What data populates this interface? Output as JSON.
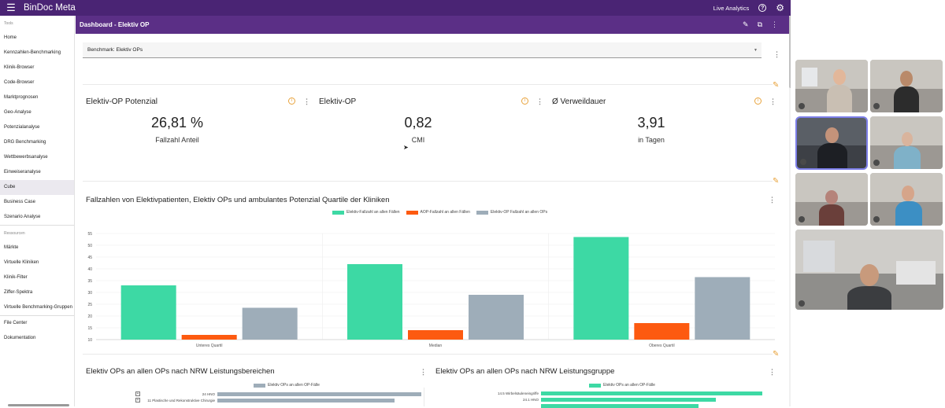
{
  "app": {
    "brand": "BinDoc Meta",
    "live_analytics": "Live Analytics",
    "help_icon": "?"
  },
  "sidebar": {
    "tools_header": "Tools",
    "tools": [
      "Home",
      "Kennzahlen-Benchmarking",
      "Klinik-Browser",
      "Code-Browser",
      "Marktprognosen",
      "Geo-Analyse",
      "Potenzialanalyse",
      "DRG Benchmarking",
      "Wettbewerbsanalyse",
      "Einweiseranalyse",
      "Cube",
      "Business Case",
      "Szenario Analyse"
    ],
    "active": "Cube",
    "resources_header": "Ressourcen",
    "resources": [
      "Märkte",
      "Virtuelle Kliniken",
      "Klinik-Filter",
      "Ziffer-Spektra",
      "Virtuelle Benchmarking-Gruppen",
      "File Center",
      "Dokumentation"
    ]
  },
  "dashboard": {
    "title": "Dashboard - Elektiv OP",
    "benchmark_select": "Benchmark: Elektiv OPs"
  },
  "kpis": [
    {
      "title": "Elektiv-OP Potenzial",
      "value": "26,81 %",
      "label": "Fallzahl Anteil"
    },
    {
      "title": "Elektiv-OP",
      "value": "0,82",
      "label": "CMI"
    },
    {
      "title": "Ø Verweildauer",
      "value": "3,91",
      "label": "in Tagen"
    }
  ],
  "colors": {
    "topbar": "#4a2474",
    "dashbar": "#5b2f86",
    "green": "#3dd9a4",
    "orange": "#fd5a10",
    "gray": "#9eadb9",
    "accent": "#e8a23a"
  },
  "chart_data": [
    {
      "type": "bar",
      "title": "Fallzahlen von Elektivpatienten, Elektiv OPs und ambulantes Potenzial Quartile der Kliniken",
      "categories": [
        "Unteres Quartil",
        "Median",
        "Oberes Quartil"
      ],
      "series": [
        {
          "name": "Elektiv-Fallzahl an allen Fällen",
          "color": "#3dd9a4",
          "values": [
            33,
            42,
            53.5
          ]
        },
        {
          "name": "AOP-Fallzahl an allen Fällen",
          "color": "#fd5a10",
          "values": [
            12,
            14,
            17
          ]
        },
        {
          "name": "Elektiv-OP Fallzahl an allen OPs",
          "color": "#9eadb9",
          "values": [
            23.5,
            29,
            36.5
          ]
        }
      ],
      "yticks": [
        10,
        15,
        20,
        25,
        30,
        35,
        40,
        45,
        50,
        55
      ],
      "ylim": [
        10,
        55
      ],
      "grid": true,
      "legend": "top"
    },
    {
      "type": "bar",
      "orientation": "horizontal",
      "title": "Elektiv OPs an allen OPs nach NRW Leistungsbereichen",
      "legend_label": "Elektiv OPs an allen OP-Fälle",
      "categories": [
        "24 HNO",
        "11 Plastische und Rekonstruktive Chirurgie"
      ],
      "values": [
        1.0,
        0.87
      ],
      "color": "#9eadb9"
    },
    {
      "type": "bar",
      "orientation": "horizontal",
      "title": "Elektiv OPs an allen OPs nach NRW Leistungsgruppe",
      "legend_label": "Elektiv OPs an allen OP-Fälle",
      "categories": [
        "14.5 Wirbelsäuleneingriffe",
        "24.1 HNO",
        ""
      ],
      "values": [
        1.0,
        0.79,
        0.71
      ],
      "color": "#3dd9a4"
    }
  ]
}
